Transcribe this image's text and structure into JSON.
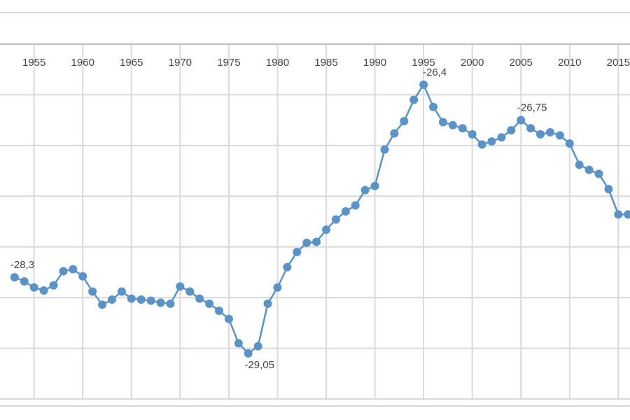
{
  "chart_data": {
    "type": "line",
    "x": [
      1953,
      1954,
      1955,
      1956,
      1957,
      1958,
      1959,
      1960,
      1961,
      1962,
      1963,
      1964,
      1965,
      1966,
      1967,
      1968,
      1969,
      1970,
      1971,
      1972,
      1973,
      1974,
      1975,
      1976,
      1977,
      1978,
      1979,
      1980,
      1981,
      1982,
      1983,
      1984,
      1985,
      1986,
      1987,
      1988,
      1989,
      1990,
      1991,
      1992,
      1993,
      1994,
      1995,
      1996,
      1997,
      1998,
      1999,
      2000,
      2001,
      2002,
      2003,
      2004,
      2005,
      2006,
      2007,
      2008,
      2009,
      2010,
      2011,
      2012,
      2013,
      2014,
      2015,
      2016
    ],
    "series": [
      {
        "color": "#5b93c7",
        "values": [
          -28.3,
          -28.34,
          -28.4,
          -28.43,
          -28.38,
          -28.24,
          -28.22,
          -28.29,
          -28.44,
          -28.57,
          -28.52,
          -28.44,
          -28.51,
          -28.52,
          -28.53,
          -28.55,
          -28.56,
          -28.39,
          -28.44,
          -28.51,
          -28.56,
          -28.63,
          -28.71,
          -28.95,
          -29.05,
          -28.98,
          -28.56,
          -28.4,
          -28.2,
          -28.05,
          -27.96,
          -27.95,
          -27.83,
          -27.73,
          -27.65,
          -27.59,
          -27.44,
          -27.4,
          -27.04,
          -26.88,
          -26.76,
          -26.55,
          -26.4,
          -26.62,
          -26.77,
          -26.8,
          -26.83,
          -26.89,
          -26.99,
          -26.96,
          -26.92,
          -26.85,
          -26.75,
          -26.83,
          -26.89,
          -26.87,
          -26.9,
          -26.98,
          -27.19,
          -27.24,
          -27.28,
          -27.43,
          -27.68,
          -27.68
        ],
        "value_labels": [
          "-28,3",
          null,
          null,
          null,
          null,
          null,
          null,
          null,
          null,
          null,
          null,
          null,
          null,
          null,
          null,
          null,
          null,
          null,
          null,
          null,
          null,
          null,
          null,
          null,
          "-29,05",
          null,
          null,
          null,
          null,
          null,
          null,
          null,
          null,
          null,
          null,
          null,
          null,
          null,
          null,
          null,
          null,
          null,
          "-26,4",
          null,
          null,
          null,
          null,
          null,
          null,
          null,
          null,
          null,
          "-26,75",
          null,
          null,
          null,
          null,
          null,
          null,
          null,
          null,
          null,
          null,
          null
        ]
      }
    ],
    "xlim": [
      1951.5,
      2016.2
    ],
    "xticks": [
      1955,
      1960,
      1965,
      1970,
      1975,
      1980,
      1985,
      1990,
      1995,
      2000,
      2005,
      2010,
      2015
    ],
    "ylim": [
      -29.5,
      -26
    ],
    "yticks": [
      -29.5,
      -29,
      -28.5,
      -28,
      -27.5,
      -27,
      -26.5
    ],
    "grid": true
  }
}
